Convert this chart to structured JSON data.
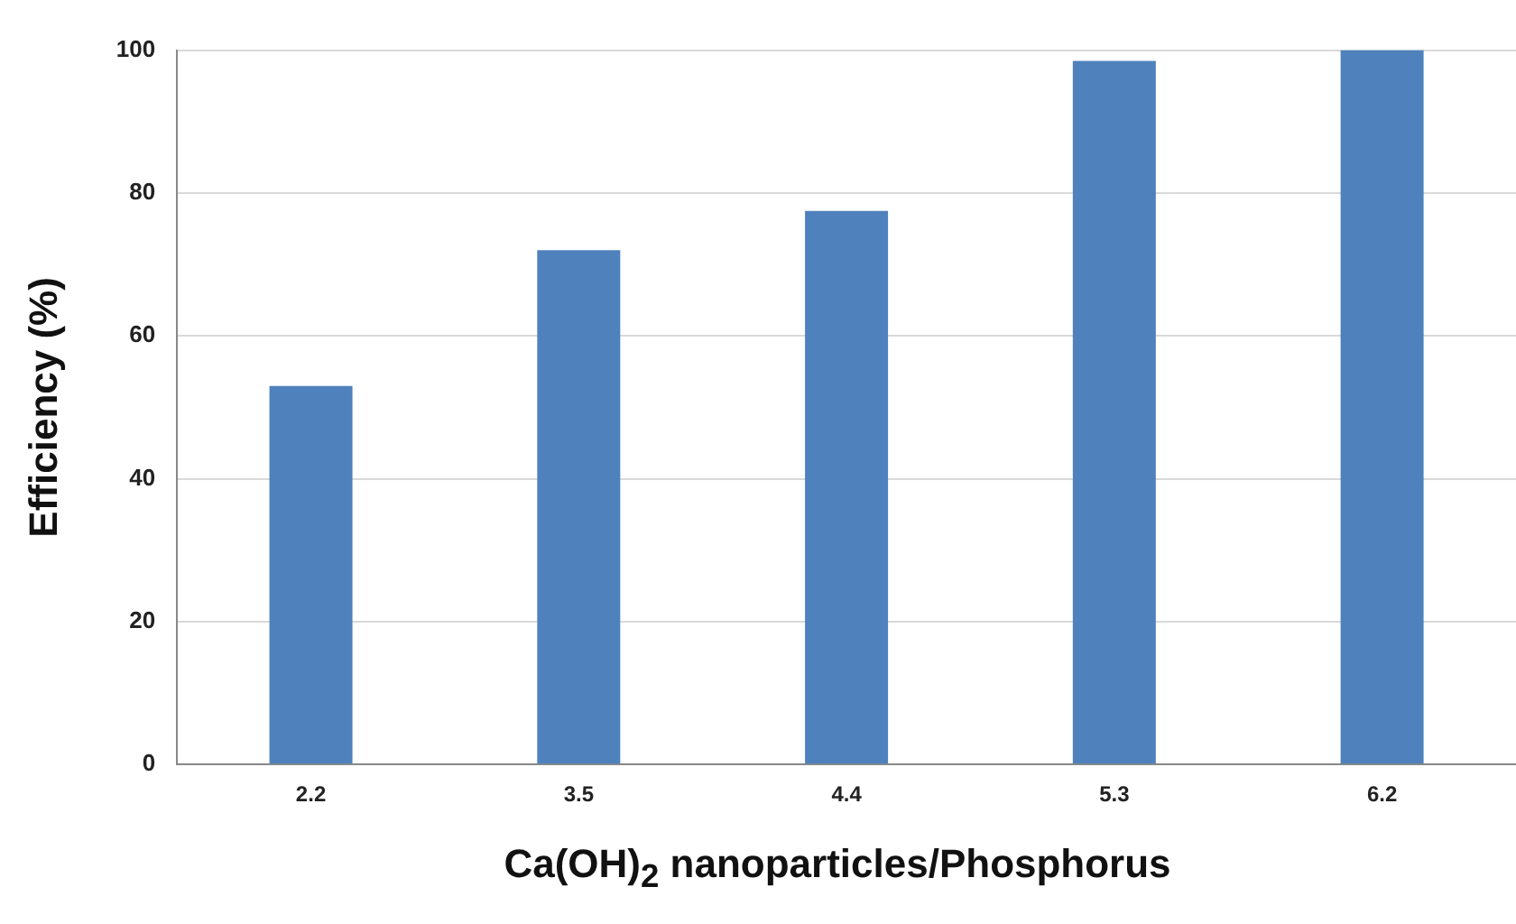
{
  "chart_data": {
    "type": "bar",
    "xlabel": "Ca(OH)$_{2}$ nanoparticles/Phosphorus",
    "ylabel": "Efficiency (%)",
    "categories": [
      "2.2",
      "3.5",
      "4.4",
      "5.3",
      "6.2"
    ],
    "values": [
      53,
      72,
      77.5,
      98.5,
      100
    ],
    "color": "#4f81bd",
    "ylim": [
      0,
      100
    ],
    "yticks": [
      0,
      20,
      40,
      60,
      80,
      100
    ],
    "grid": "y"
  }
}
